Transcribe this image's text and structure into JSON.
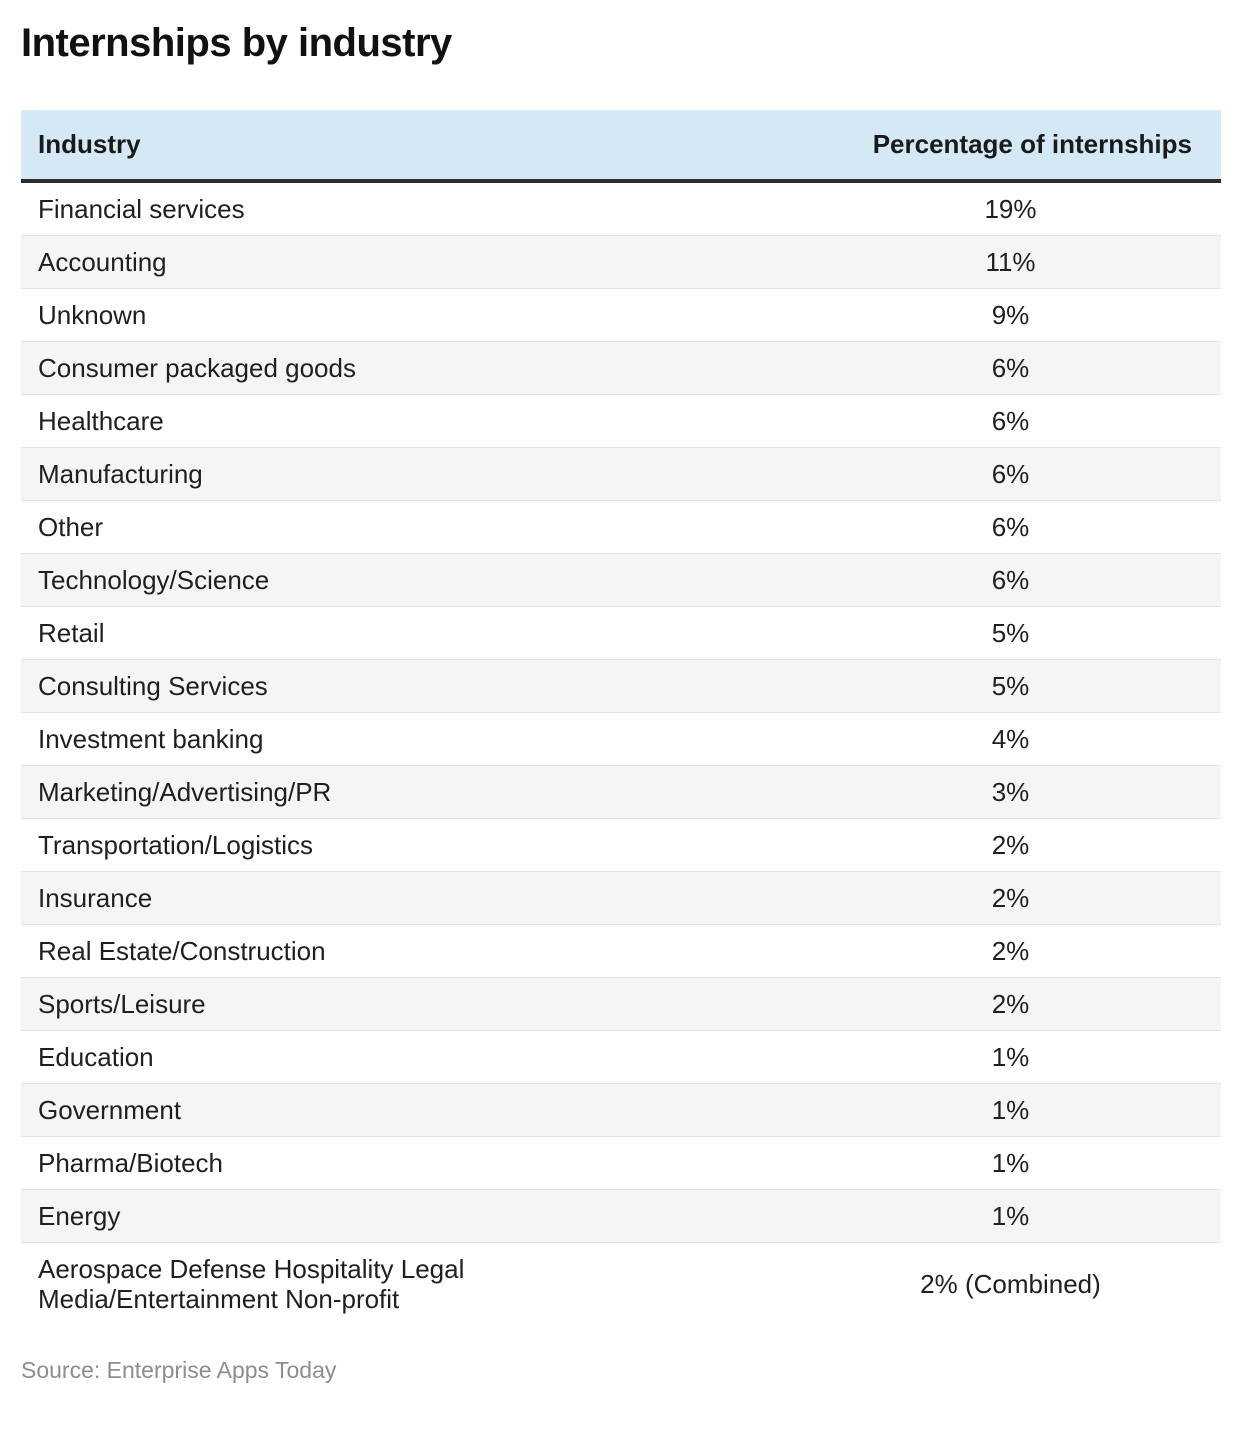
{
  "page": {
    "title": "Internships by industry",
    "source": "Source: Enterprise Apps Today"
  },
  "table": {
    "header": {
      "industry": "Industry",
      "percentage": "Percentage of internships"
    },
    "rows": [
      {
        "industry": "Financial services",
        "percentage": "19%"
      },
      {
        "industry": "Accounting",
        "percentage": "11%"
      },
      {
        "industry": "Unknown",
        "percentage": "9%"
      },
      {
        "industry": "Consumer packaged goods",
        "percentage": "6%"
      },
      {
        "industry": "Healthcare",
        "percentage": "6%"
      },
      {
        "industry": "Manufacturing",
        "percentage": "6%"
      },
      {
        "industry": "Other",
        "percentage": "6%"
      },
      {
        "industry": "Technology/Science",
        "percentage": "6%"
      },
      {
        "industry": "Retail",
        "percentage": "5%"
      },
      {
        "industry": "Consulting Services",
        "percentage": "5%"
      },
      {
        "industry": "Investment banking",
        "percentage": "4%"
      },
      {
        "industry": "Marketing/Advertising/PR",
        "percentage": "3%"
      },
      {
        "industry": "Transportation/Logistics",
        "percentage": "2%"
      },
      {
        "industry": "Insurance",
        "percentage": "2%"
      },
      {
        "industry": "Real Estate/Construction",
        "percentage": "2%"
      },
      {
        "industry": "Sports/Leisure",
        "percentage": "2%"
      },
      {
        "industry": "Education",
        "percentage": "1%"
      },
      {
        "industry": "Government",
        "percentage": "1%"
      },
      {
        "industry": "Pharma/Biotech",
        "percentage": "1%"
      },
      {
        "industry": "Energy",
        "percentage": "1%"
      },
      {
        "industry": "Aerospace Defense Hospitality Legal Media/Entertainment Non-profit",
        "percentage": "2% (Combined)"
      }
    ]
  },
  "chart_data": {
    "type": "table",
    "title": "Internships by industry",
    "columns": [
      "Industry",
      "Percentage of internships"
    ],
    "categories": [
      "Financial services",
      "Accounting",
      "Unknown",
      "Consumer packaged goods",
      "Healthcare",
      "Manufacturing",
      "Other",
      "Technology/Science",
      "Retail",
      "Consulting Services",
      "Investment banking",
      "Marketing/Advertising/PR",
      "Transportation/Logistics",
      "Insurance",
      "Real Estate/Construction",
      "Sports/Leisure",
      "Education",
      "Government",
      "Pharma/Biotech",
      "Energy",
      "Aerospace Defense Hospitality Legal Media/Entertainment Non-profit"
    ],
    "values": [
      19,
      11,
      9,
      6,
      6,
      6,
      6,
      6,
      5,
      5,
      4,
      3,
      2,
      2,
      2,
      2,
      1,
      1,
      1,
      1,
      2
    ],
    "value_labels": [
      "19%",
      "11%",
      "9%",
      "6%",
      "6%",
      "6%",
      "6%",
      "6%",
      "5%",
      "5%",
      "4%",
      "3%",
      "2%",
      "2%",
      "2%",
      "2%",
      "1%",
      "1%",
      "1%",
      "1%",
      "2% (Combined)"
    ],
    "source": "Source: Enterprise Apps Today"
  },
  "colors": {
    "header_bg": "#d4e9f5",
    "alt_row_bg": "#f5f5f5",
    "header_rule": "#2d2d2d",
    "row_rule": "#e3e3e3",
    "text": "#1f1f1f",
    "source_text": "#8d8d8d"
  }
}
